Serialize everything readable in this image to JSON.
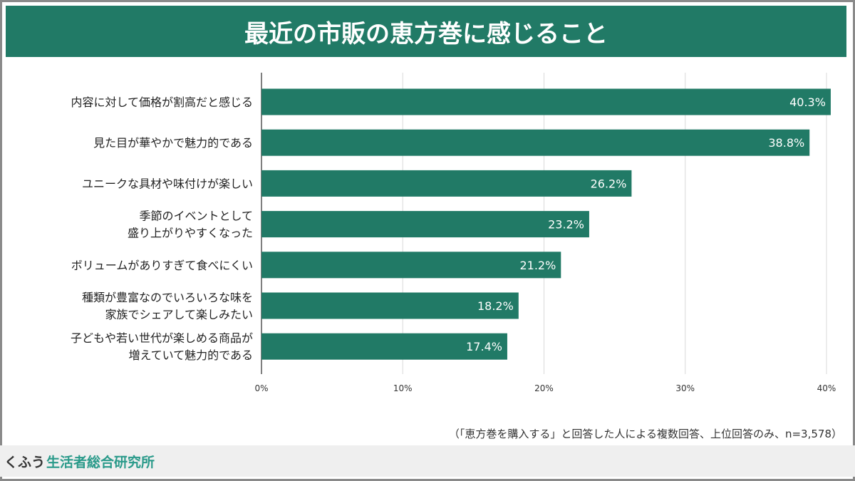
{
  "chart_data": {
    "type": "bar",
    "orientation": "horizontal",
    "title": "最近の市販の恵方巻に感じること",
    "categories": [
      [
        "内容に対して価格が割高だと感じる"
      ],
      [
        "見た目が華やかで魅力的である"
      ],
      [
        "ユニークな具材や味付けが楽しい"
      ],
      [
        "季節のイベントとして",
        "盛り上がりやすくなった"
      ],
      [
        "ボリュームがありすぎて食べにくい"
      ],
      [
        "種類が豊富なのでいろいろな味を",
        "家族でシェアして楽しみたい"
      ],
      [
        "子どもや若い世代が楽しめる商品が",
        "増えていて魅力的である"
      ]
    ],
    "values": [
      40.3,
      38.8,
      26.2,
      23.2,
      21.2,
      18.2,
      17.4
    ],
    "data_labels": [
      "40.3%",
      "38.8%",
      "26.2%",
      "23.2%",
      "21.2%",
      "18.2%",
      "17.4%"
    ],
    "xlim": [
      0,
      40
    ],
    "xticks": [
      0,
      10,
      20,
      30,
      40
    ],
    "xtick_labels": [
      "0%",
      "10%",
      "20%",
      "30%",
      "40%"
    ],
    "grid": true,
    "bar_color": "#217a66",
    "note": "（「恵方巻を購入する」と回答した人による複数回答、上位回答のみ、n=3,578）"
  },
  "footer": {
    "brand_part1": "くふう",
    "brand_part2": "生活者総合研究所"
  },
  "colors": {
    "title_bg": "#217a66",
    "brand_accent": "#2a9a8a"
  }
}
